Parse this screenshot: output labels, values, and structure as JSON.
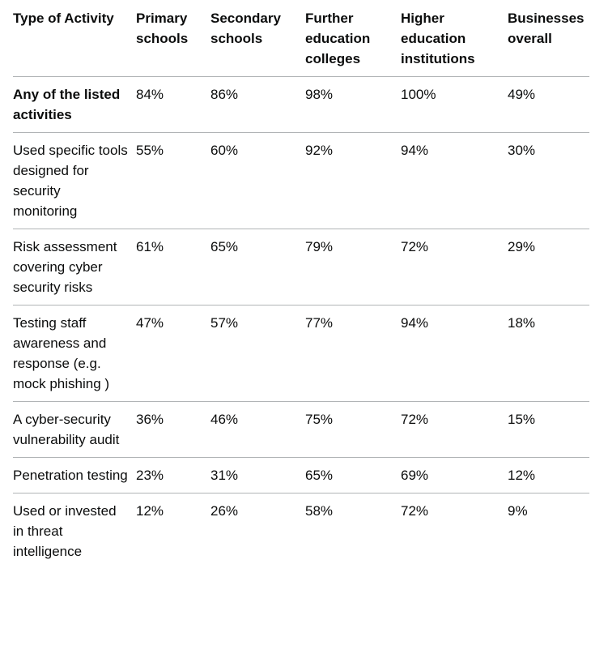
{
  "table": {
    "headers": [
      "Type of Activity",
      "Primary schools",
      "Secondary schools",
      "Further education colleges",
      "Higher education institutions",
      "Businesses overall"
    ],
    "rows": [
      [
        "Any of the listed activities",
        "84%",
        "86%",
        "98%",
        "100%",
        "49%"
      ],
      [
        "Used specific tools designed for security monitoring",
        "55%",
        "60%",
        "92%",
        "94%",
        "30%"
      ],
      [
        "Risk assessment covering cyber security risks",
        "61%",
        "65%",
        "79%",
        "72%",
        "29%"
      ],
      [
        "Testing staff awareness and response (e.g. mock phishing )",
        "47%",
        "57%",
        "77%",
        "94%",
        "18%"
      ],
      [
        "A cyber-security vulnerability audit",
        "36%",
        "46%",
        "75%",
        "72%",
        "15%"
      ],
      [
        "Penetration testing",
        "23%",
        "31%",
        "65%",
        "69%",
        "12%"
      ],
      [
        "Used or invested in threat intelligence",
        "12%",
        "26%",
        "58%",
        "72%",
        "9%"
      ]
    ]
  }
}
